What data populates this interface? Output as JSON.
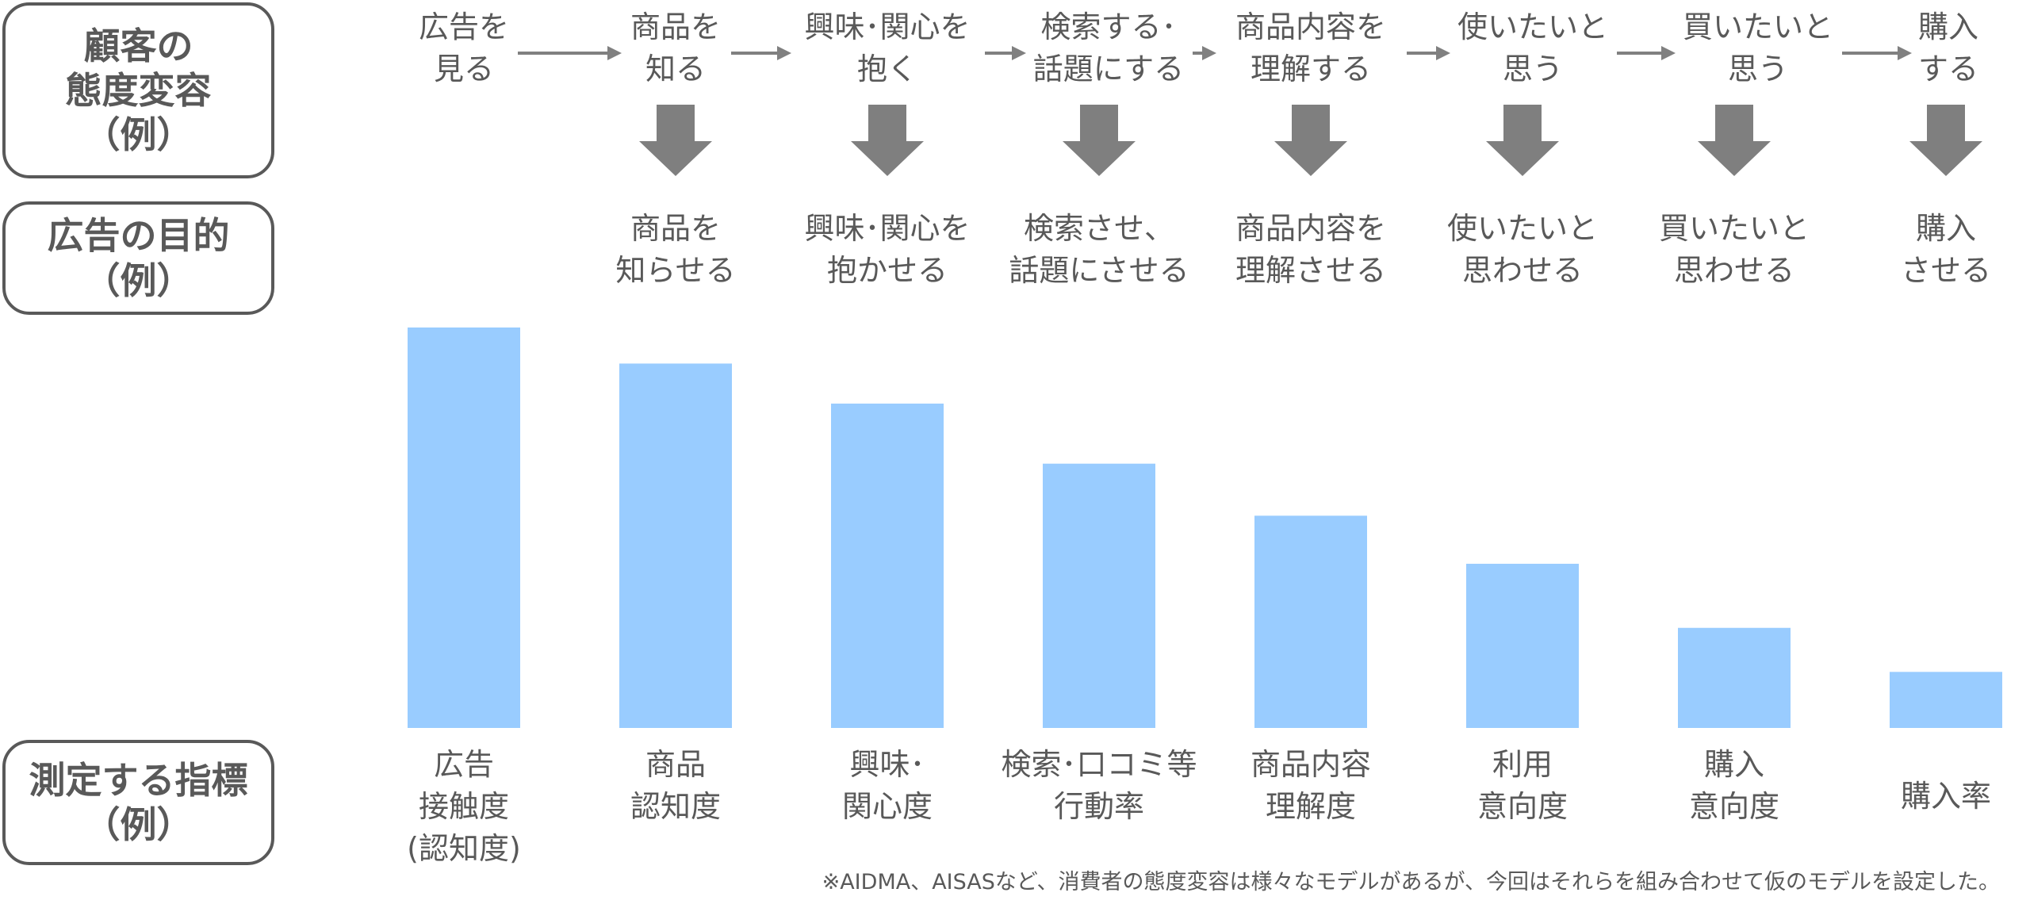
{
  "labels": {
    "attitude": "顧客の\n態度変容\n（例）",
    "purpose": "広告の目的\n（例）",
    "metric": "測定する指標\n（例）"
  },
  "stages": [
    "広告を\n見る",
    "商品を\n知る",
    "興味･関心を\n抱く",
    "検索する･\n話題にする",
    "商品内容を\n理解する",
    "使いたいと\n思う",
    "買いたいと\n思う",
    "購入\nする"
  ],
  "purposes": [
    "商品を\n知らせる",
    "興味･関心を\n抱かせる",
    "検索させ、\n話題にさせる",
    "商品内容を\n理解させる",
    "使いたいと\n思わせる",
    "買いたいと\n思わせる",
    "購入\nさせる"
  ],
  "chart_data": {
    "type": "bar",
    "categories": [
      "広告\n接触度\n(認知度)",
      "商品\n認知度",
      "興味･\n関心度",
      "検索･口コミ等\n行動率",
      "商品内容\n理解度",
      "利用\n意向度",
      "購入\n意向度",
      "購入率"
    ],
    "values": [
      100,
      91,
      81,
      66,
      53,
      41,
      25,
      14
    ],
    "ylim": [
      0,
      100
    ],
    "bar_color": "#99CCFF",
    "axis_visible": false,
    "grid": false
  },
  "footnote": "※AIDMA、AISASなど、消費者の態度変容は様々なモデルがあるが、今回はそれらを組み合わせて仮のモデルを設定した。",
  "colors": {
    "text": "#595959",
    "arrow_small": "#808080",
    "arrow_big": "#7F7F7F",
    "bar": "#99CCFF"
  }
}
